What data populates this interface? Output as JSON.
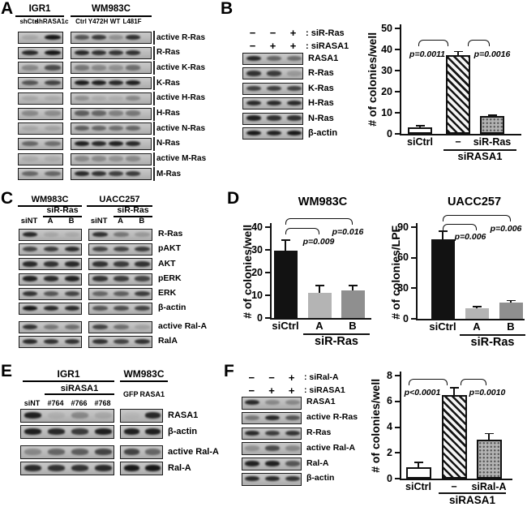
{
  "figure": {
    "panels": {
      "A": {
        "letter": "A",
        "groups": [
          {
            "name": "IGR1",
            "lanes": [
              "shCtrl",
              "shRASA1c"
            ]
          },
          {
            "name": "WM983C",
            "lanes": [
              "Ctrl",
              "Y472H",
              "WT",
              "L481F"
            ]
          }
        ],
        "rows": [
          {
            "label": "active R-Ras",
            "bands": [
              [
                0.12,
                0.95
              ],
              [
                0.6,
                0.75,
                0.25,
                0.8
              ]
            ]
          },
          {
            "label": "R-Ras",
            "bands": [
              [
                0.85,
                0.95
              ],
              [
                0.85,
                0.8,
                0.78,
                0.8
              ]
            ]
          },
          {
            "label": "active K-Ras",
            "bands": [
              [
                0.3,
                0.65
              ],
              [
                0.4,
                0.3,
                0.25,
                0.45
              ]
            ]
          },
          {
            "label": "K-Ras",
            "bands": [
              [
                0.6,
                0.7
              ],
              [
                0.92,
                0.9,
                0.85,
                0.9
              ]
            ]
          },
          {
            "label": "active H-Ras",
            "bands": [
              [
                0.12,
                0.1
              ],
              [
                0.25,
                0.1,
                0.08,
                0.3
              ]
            ]
          },
          {
            "label": "H-Ras",
            "bands": [
              [
                0.3,
                0.28
              ],
              [
                0.55,
                0.5,
                0.35,
                0.4
              ]
            ]
          },
          {
            "label": "active N-Ras",
            "bands": [
              [
                0.12,
                0.15
              ],
              [
                0.55,
                0.5,
                0.45,
                0.5
              ]
            ]
          },
          {
            "label": "N-Ras",
            "bands": [
              [
                0.5,
                0.45
              ],
              [
                0.9,
                0.85,
                0.9,
                0.85
              ]
            ]
          },
          {
            "label": "active M-Ras",
            "bands": [
              [
                0.1,
                0.1
              ],
              [
                0.3,
                0.3,
                0.25,
                0.3
              ]
            ]
          },
          {
            "label": "M-Ras",
            "bands": [
              [
                0.5,
                0.5
              ],
              [
                0.85,
                0.8,
                0.72,
                0.75
              ]
            ]
          }
        ]
      },
      "B": {
        "letter": "B",
        "conditions": [
          {
            "signs": [
              "−",
              "−",
              "+"
            ],
            "label": ": siR-Ras"
          },
          {
            "signs": [
              "−",
              "+",
              "+"
            ],
            "label": ": siRASA1"
          }
        ],
        "rows": [
          {
            "label": "RASA1",
            "bands": [
              [
                0.85,
                0.5,
                0.45
              ]
            ]
          },
          {
            "label": "R-Ras",
            "bands": [
              [
                0.8,
                0.75,
                0.2
              ]
            ]
          },
          {
            "label": "K-Ras",
            "bands": [
              [
                0.7,
                0.72,
                0.7
              ]
            ]
          },
          {
            "label": "H-Ras",
            "bands": [
              [
                0.85,
                0.85,
                0.85
              ]
            ]
          },
          {
            "label": "N-Ras",
            "bands": [
              [
                0.9,
                0.8,
                0.8
              ]
            ]
          },
          {
            "label": "β-actin",
            "bands": [
              [
                0.95,
                0.9,
                0.95
              ]
            ]
          }
        ]
      },
      "C": {
        "letter": "C",
        "groups": [
          {
            "name": "WM983C",
            "sub": "siR-Ras",
            "lanes": [
              "siNT",
              "A",
              "B"
            ]
          },
          {
            "name": "UACC257",
            "sub": "siR-Ras",
            "lanes": [
              "siNT",
              "A",
              "B"
            ]
          }
        ],
        "rows": [
          {
            "label": "R-Ras",
            "bands": [
              [
                0.85,
                0.12,
                0.1
              ],
              [
                0.8,
                0.4,
                0.2
              ]
            ]
          },
          {
            "label": "pAKT",
            "bands": [
              [
                0.7,
                0.75,
                0.85
              ],
              [
                0.7,
                0.7,
                0.75
              ]
            ]
          },
          {
            "label": "AKT",
            "bands": [
              [
                0.85,
                0.8,
                0.85
              ],
              [
                0.8,
                0.75,
                0.8
              ]
            ]
          },
          {
            "label": "pERK",
            "bands": [
              [
                0.9,
                0.85,
                0.9
              ],
              [
                0.8,
                0.75,
                0.7
              ]
            ]
          },
          {
            "label": "ERK",
            "bands": [
              [
                0.8,
                0.6,
                0.7
              ],
              [
                0.5,
                0.55,
                0.75
              ]
            ]
          },
          {
            "label": "β-actin",
            "bands": [
              [
                0.95,
                0.85,
                0.85
              ],
              [
                0.6,
                0.65,
                0.7
              ]
            ]
          },
          {
            "label": "active Ral-A",
            "bands": [
              [
                0.8,
                0.4,
                0.45
              ],
              [
                0.7,
                0.45,
                0.15
              ]
            ]
          },
          {
            "label": "RalA",
            "bands": [
              [
                0.85,
                0.8,
                0.8
              ],
              [
                0.8,
                0.7,
                0.8
              ]
            ]
          }
        ]
      },
      "D": {
        "letter": "D"
      },
      "E": {
        "letter": "E",
        "groups": [
          {
            "name": "IGR1",
            "sub": "siRASA1",
            "lanes": [
              "siNT",
              "#764",
              "#766",
              "#768"
            ]
          },
          {
            "name": "WM983C",
            "lanes": [
              "GFP",
              "RASA1"
            ]
          }
        ],
        "rows": [
          {
            "label": "RASA1",
            "bands": [
              [
                0.9,
                0.08,
                0.3,
                0.12
              ],
              [
                0.04,
                0.85
              ]
            ]
          },
          {
            "label": "β-actin",
            "bands": [
              [
                0.9,
                0.85,
                0.75,
                0.9
              ],
              [
                0.9,
                0.9
              ]
            ]
          },
          {
            "label": "active Ral-A",
            "bands": [
              [
                0.3,
                0.5,
                0.55,
                0.7
              ],
              [
                0.7,
                0.5
              ]
            ]
          },
          {
            "label": "Ral-A",
            "bands": [
              [
                0.85,
                0.8,
                0.8,
                0.85
              ],
              [
                0.95,
                0.95
              ]
            ]
          }
        ]
      },
      "F": {
        "letter": "F",
        "conditions": [
          {
            "signs": [
              "−",
              "−",
              "+"
            ],
            "label": ": siRal-A"
          },
          {
            "signs": [
              "−",
              "+",
              "+"
            ],
            "label": ": siRASA1"
          }
        ],
        "rows": [
          {
            "label": "RASA1",
            "bands": [
              [
                0.85,
                0.3,
                0.3
              ]
            ]
          },
          {
            "label": "active R-Ras",
            "bands": [
              [
                0.4,
                0.85,
                0.6
              ]
            ]
          },
          {
            "label": "R-Ras",
            "bands": [
              [
                0.85,
                0.75,
                0.8
              ]
            ]
          },
          {
            "label": "active Ral-A",
            "bands": [
              [
                0.25,
                0.65,
                0.3
              ]
            ]
          },
          {
            "label": "Ral-A",
            "bands": [
              [
                0.9,
                0.9,
                0.6
              ]
            ]
          },
          {
            "label": "β-actin",
            "bands": [
              [
                0.85,
                0.85,
                0.8
              ]
            ]
          }
        ]
      }
    }
  },
  "chart_data": [
    {
      "id": "B",
      "type": "bar",
      "title": "",
      "ylabel": "# of colonies/well",
      "xlabel": "",
      "ylim": [
        0,
        50
      ],
      "yticks": [
        0,
        10,
        20,
        30,
        40,
        50
      ],
      "categories": [
        "siCtrl",
        "−",
        "siR-Ras"
      ],
      "values": [
        3.2,
        37.5,
        8.3
      ],
      "errors": [
        0.6,
        1.5,
        0.6
      ],
      "bar_styles": [
        "white",
        "hatch",
        "dots"
      ],
      "group": {
        "label": "siRASA1",
        "bars": [
          1,
          2
        ]
      },
      "significance": [
        {
          "bars": [
            0,
            1
          ],
          "label": "p=0.0011"
        },
        {
          "bars": [
            1,
            2
          ],
          "label": "p=0.0016"
        }
      ]
    },
    {
      "id": "D1",
      "type": "bar",
      "title": "WM983C",
      "ylabel": "# of colonies/well",
      "xlabel": "",
      "ylim": [
        0,
        40
      ],
      "yticks": [
        0,
        10,
        20,
        30,
        40
      ],
      "categories": [
        "siCtrl",
        "A",
        "B"
      ],
      "values": [
        29.5,
        11,
        12
      ],
      "errors": [
        4.8,
        3.2,
        2.2
      ],
      "bar_styles": [
        "black",
        "lightgray",
        "gray"
      ],
      "group": {
        "label": "siR-Ras",
        "bars": [
          1,
          2
        ]
      },
      "significance": [
        {
          "bars": [
            0,
            1
          ],
          "label": "p=0.009"
        },
        {
          "bars": [
            0,
            2
          ],
          "label": "p=0.016"
        }
      ]
    },
    {
      "id": "D2",
      "type": "bar",
      "title": "UACC257",
      "ylabel": "# of colonies/LPF",
      "xlabel": "",
      "ylim": [
        0,
        90
      ],
      "yticks": [
        0,
        30,
        60,
        90
      ],
      "categories": [
        "siCtrl",
        "A",
        "B"
      ],
      "values": [
        78,
        10.5,
        16
      ],
      "errors": [
        8,
        1.5,
        2
      ],
      "bar_styles": [
        "black",
        "lightgray",
        "gray"
      ],
      "group": {
        "label": "siR-Ras",
        "bars": [
          1,
          2
        ]
      },
      "significance": [
        {
          "bars": [
            0,
            1
          ],
          "label": "p=0.006"
        },
        {
          "bars": [
            0,
            2
          ],
          "label": "p=0.006"
        }
      ]
    },
    {
      "id": "F",
      "type": "bar",
      "title": "",
      "ylabel": "# of colonies/well",
      "xlabel": "",
      "ylim": [
        0,
        8
      ],
      "yticks": [
        0,
        2,
        4,
        6,
        8
      ],
      "categories": [
        "siCtrl",
        "−",
        "siRal-A"
      ],
      "values": [
        0.9,
        6.5,
        3.0
      ],
      "errors": [
        0.35,
        0.55,
        0.5
      ],
      "bar_styles": [
        "white",
        "hatch",
        "dots"
      ],
      "group": {
        "label": "siRASA1",
        "bars": [
          1,
          2
        ]
      },
      "significance": [
        {
          "bars": [
            0,
            1
          ],
          "label": "p<0.0001"
        },
        {
          "bars": [
            1,
            2
          ],
          "label": "p=0.0010"
        }
      ]
    }
  ]
}
